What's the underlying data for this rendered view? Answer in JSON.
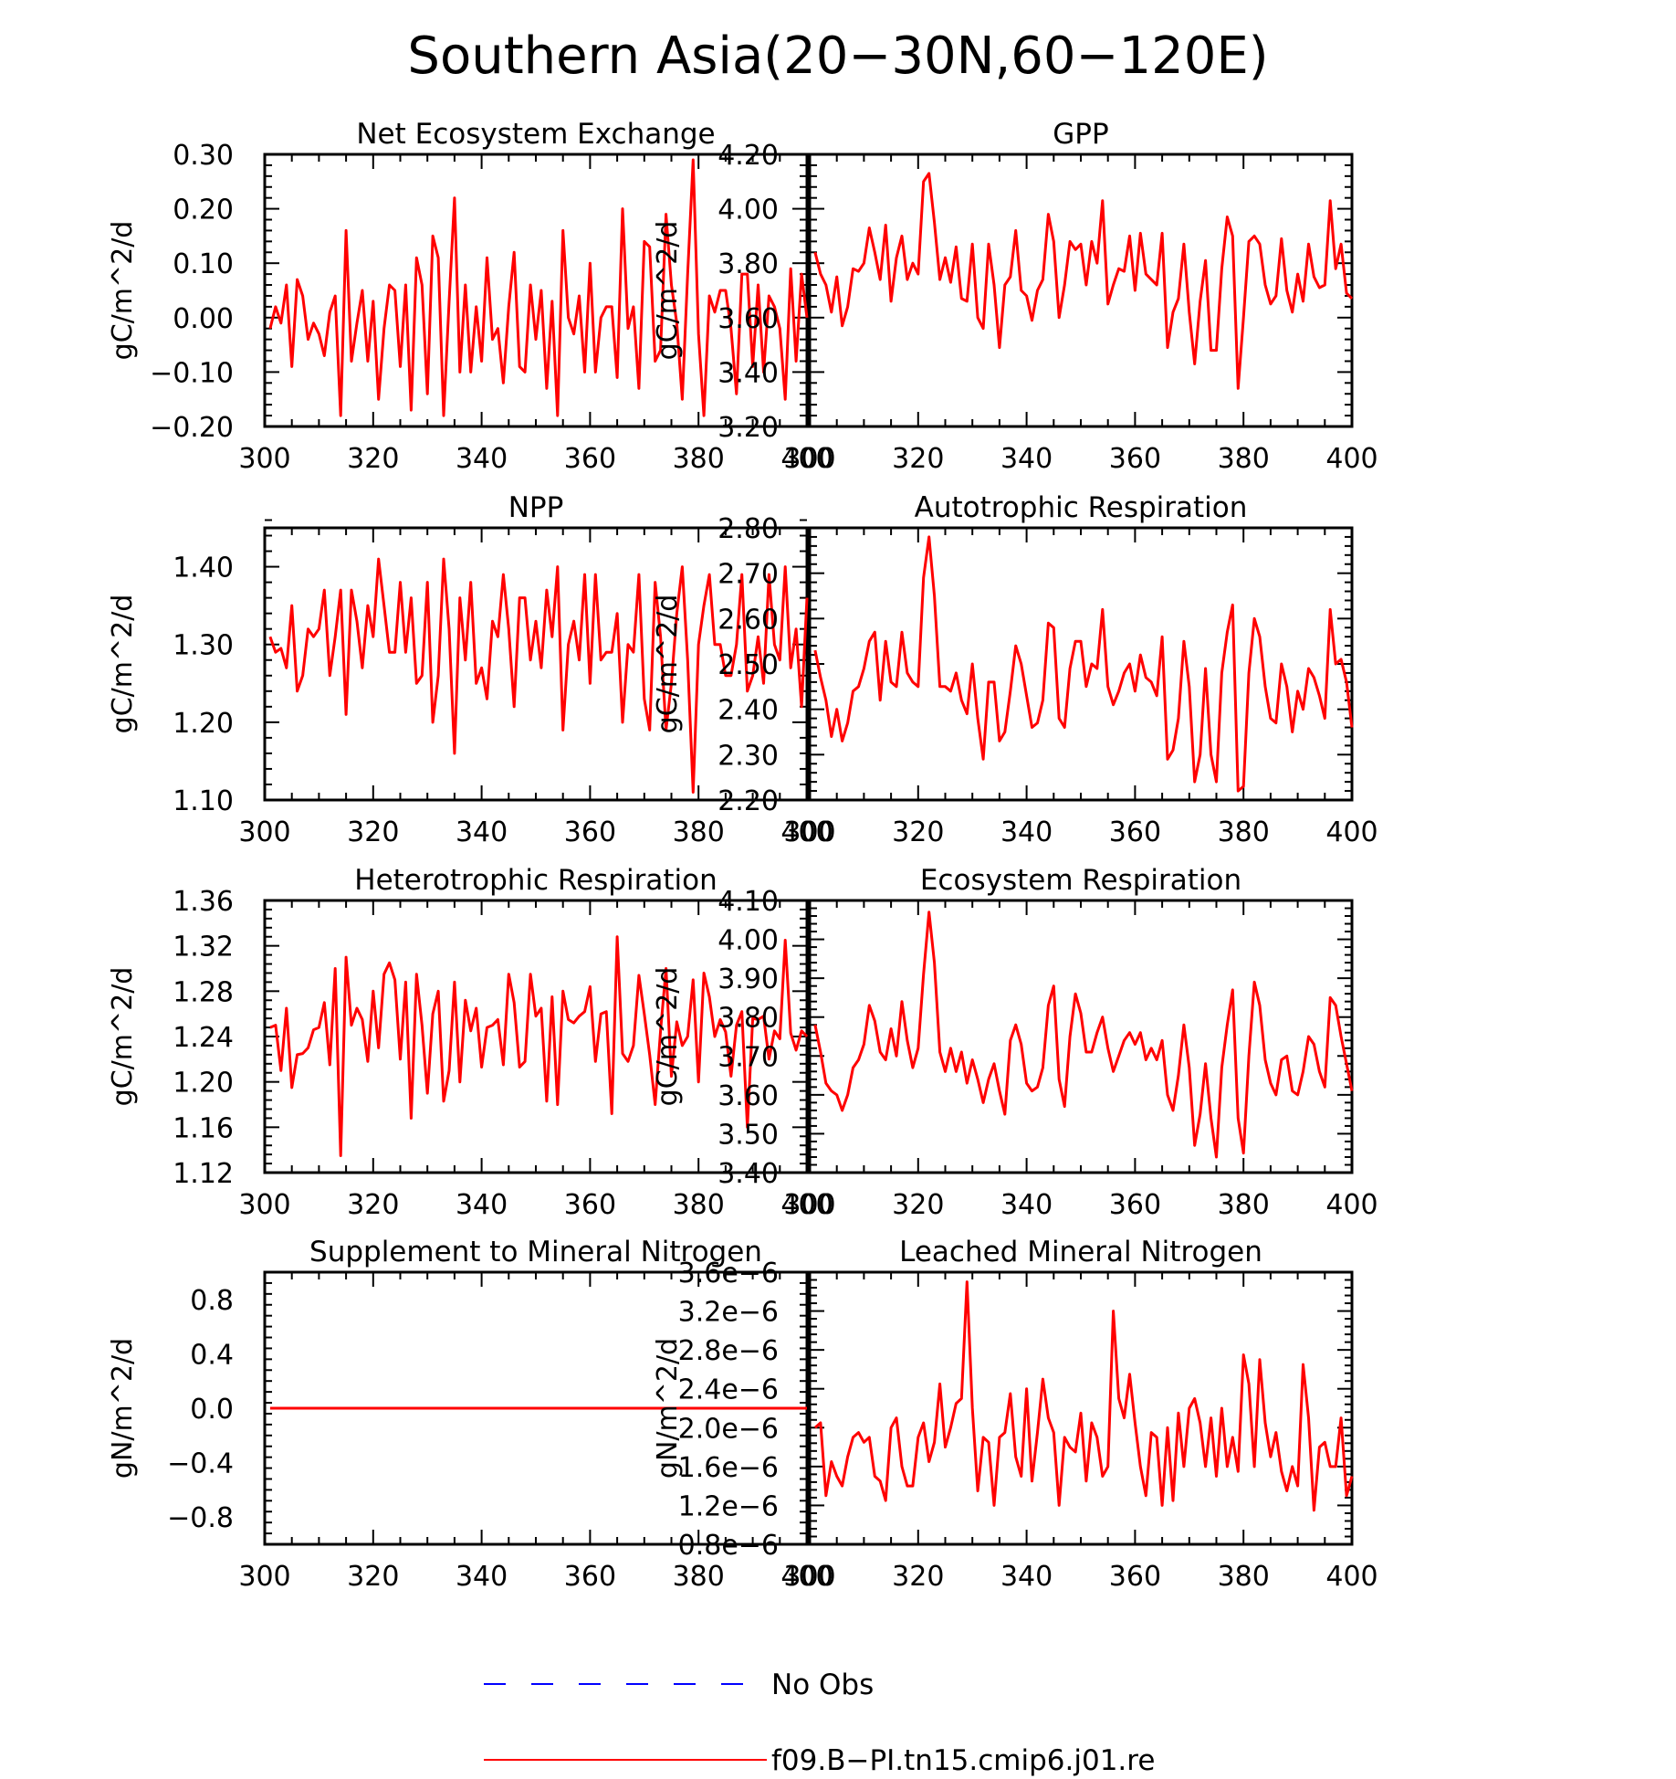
{
  "figure": {
    "title": "Southern Asia(20-30N,60-120E)",
    "legend": [
      {
        "label": "No Obs",
        "color": "#0000ff",
        "dash": true
      },
      {
        "label": "f09.B-PI.tn15.cmip6.j01.re",
        "color": "#ff0000",
        "dash": false
      }
    ]
  },
  "chart_data": [
    {
      "type": "line",
      "title": "Net Ecosystem Exchange",
      "ylabel": "gC/m^2/d",
      "xlim": [
        300,
        400
      ],
      "xticks": [
        300,
        320,
        340,
        360,
        380,
        400
      ],
      "ylim": [
        -0.2,
        0.3
      ],
      "yticks": [
        -0.2,
        -0.1,
        0.0,
        0.1,
        0.2,
        0.3
      ],
      "ytick_labels": [
        "-0.20",
        "-0.10",
        "0.00",
        "0.10",
        "0.20",
        "0.30"
      ],
      "series": [
        {
          "name": "f09.B-PI.tn15.cmip6.j01.re",
          "color": "#ff0000",
          "x_start": 301,
          "x_step": 1,
          "values": [
            -0.02,
            0.02,
            -0.01,
            0.06,
            -0.09,
            0.07,
            0.04,
            -0.04,
            -0.01,
            -0.03,
            -0.07,
            0.01,
            0.04,
            -0.18,
            0.16,
            -0.08,
            -0.01,
            0.05,
            -0.08,
            0.03,
            -0.15,
            -0.02,
            0.06,
            0.05,
            -0.09,
            0.06,
            -0.17,
            0.11,
            0.06,
            -0.14,
            0.15,
            0.11,
            -0.18,
            0.03,
            0.22,
            -0.1,
            0.06,
            -0.1,
            0.02,
            -0.08,
            0.11,
            -0.04,
            -0.02,
            -0.12,
            0.02,
            0.12,
            -0.09,
            -0.1,
            0.06,
            -0.04,
            0.05,
            -0.13,
            0.03,
            -0.18,
            0.16,
            0.0,
            -0.03,
            0.04,
            -0.1,
            0.1,
            -0.1,
            0.0,
            0.02,
            0.02,
            -0.11,
            0.2,
            -0.02,
            0.02,
            -0.13,
            0.14,
            0.13,
            -0.08,
            -0.06,
            0.19,
            0.06,
            -0.01,
            -0.15,
            0.08,
            0.29,
            -0.03,
            -0.18,
            0.04,
            0.01,
            0.05,
            0.05,
            -0.02,
            -0.14,
            0.08,
            0.08,
            -0.09,
            0.06,
            -0.1,
            0.04,
            0.02,
            -0.02,
            -0.15,
            0.09,
            -0.08,
            0.08,
            0.0
          ]
        }
      ]
    },
    {
      "type": "line",
      "title": "GPP",
      "ylabel": "gC/m^2/d",
      "xlim": [
        300,
        400
      ],
      "xticks": [
        300,
        320,
        340,
        360,
        380,
        400
      ],
      "ylim": [
        3.2,
        4.2
      ],
      "yticks": [
        3.2,
        3.4,
        3.6,
        3.8,
        4.0,
        4.2
      ],
      "ytick_labels": [
        "3.20",
        "3.40",
        "3.60",
        "3.80",
        "4.00",
        "4.20"
      ],
      "series": [
        {
          "name": "f09.B-PI.tn15.cmip6.j01.re",
          "color": "#ff0000",
          "x_start": 301,
          "x_step": 1,
          "values": [
            3.84,
            3.76,
            3.72,
            3.62,
            3.75,
            3.57,
            3.64,
            3.78,
            3.77,
            3.8,
            3.93,
            3.84,
            3.74,
            3.94,
            3.66,
            3.82,
            3.9,
            3.74,
            3.8,
            3.76,
            4.1,
            4.13,
            3.95,
            3.74,
            3.82,
            3.73,
            3.86,
            3.67,
            3.66,
            3.87,
            3.6,
            3.56,
            3.87,
            3.72,
            3.49,
            3.72,
            3.75,
            3.92,
            3.7,
            3.68,
            3.59,
            3.7,
            3.74,
            3.98,
            3.88,
            3.6,
            3.72,
            3.88,
            3.85,
            3.87,
            3.72,
            3.88,
            3.8,
            4.03,
            3.65,
            3.72,
            3.78,
            3.77,
            3.9,
            3.7,
            3.91,
            3.76,
            3.74,
            3.72,
            3.91,
            3.49,
            3.62,
            3.67,
            3.87,
            3.62,
            3.43,
            3.66,
            3.81,
            3.48,
            3.48,
            3.78,
            3.97,
            3.9,
            3.34,
            3.6,
            3.88,
            3.9,
            3.87,
            3.72,
            3.65,
            3.68,
            3.89,
            3.7,
            3.62,
            3.76,
            3.66,
            3.87,
            3.75,
            3.71,
            3.72,
            4.03,
            3.78,
            3.87,
            3.69,
            3.67
          ]
        }
      ]
    },
    {
      "type": "line",
      "title": "NPP",
      "ylabel": "gC/m^2/d",
      "xlim": [
        300,
        400
      ],
      "xticks": [
        300,
        320,
        340,
        360,
        380,
        400
      ],
      "ylim": [
        1.1,
        1.45
      ],
      "yticks": [
        1.1,
        1.2,
        1.3,
        1.4
      ],
      "ytick_labels": [
        "1.10",
        "1.20",
        "1.30",
        "1.40"
      ],
      "series": [
        {
          "name": "f09.B-PI.tn15.cmip6.j01.re",
          "color": "#ff0000",
          "x_start": 301,
          "x_step": 1,
          "values": [
            1.31,
            1.29,
            1.295,
            1.27,
            1.35,
            1.24,
            1.26,
            1.32,
            1.31,
            1.32,
            1.37,
            1.26,
            1.31,
            1.37,
            1.21,
            1.37,
            1.33,
            1.27,
            1.35,
            1.31,
            1.41,
            1.35,
            1.29,
            1.29,
            1.38,
            1.29,
            1.36,
            1.25,
            1.26,
            1.38,
            1.2,
            1.26,
            1.41,
            1.32,
            1.16,
            1.36,
            1.28,
            1.38,
            1.25,
            1.27,
            1.23,
            1.33,
            1.31,
            1.39,
            1.32,
            1.22,
            1.36,
            1.36,
            1.28,
            1.33,
            1.27,
            1.37,
            1.31,
            1.4,
            1.19,
            1.3,
            1.33,
            1.28,
            1.39,
            1.25,
            1.39,
            1.28,
            1.29,
            1.29,
            1.34,
            1.2,
            1.3,
            1.29,
            1.39,
            1.23,
            1.19,
            1.38,
            1.31,
            1.19,
            1.25,
            1.34,
            1.4,
            1.28,
            1.11,
            1.3,
            1.35,
            1.39,
            1.3,
            1.3,
            1.26,
            1.26,
            1.3,
            1.39,
            1.24,
            1.26,
            1.31,
            1.25,
            1.39,
            1.3,
            1.28,
            1.4,
            1.27,
            1.32,
            1.22,
            1.36
          ]
        }
      ]
    },
    {
      "type": "line",
      "title": "Autotrophic Respiration",
      "ylabel": "gC/m^2/d",
      "xlim": [
        300,
        400
      ],
      "xticks": [
        300,
        320,
        340,
        360,
        380,
        400
      ],
      "ylim": [
        2.2,
        2.8
      ],
      "yticks": [
        2.2,
        2.3,
        2.4,
        2.5,
        2.6,
        2.7,
        2.8
      ],
      "ytick_labels": [
        "2.20",
        "2.30",
        "2.40",
        "2.50",
        "2.60",
        "2.70",
        "2.80"
      ],
      "series": [
        {
          "name": "f09.B-PI.tn15.cmip6.j01.re",
          "color": "#ff0000",
          "x_start": 301,
          "x_step": 1,
          "values": [
            2.53,
            2.47,
            2.42,
            2.34,
            2.4,
            2.33,
            2.37,
            2.44,
            2.45,
            2.49,
            2.55,
            2.57,
            2.42,
            2.55,
            2.46,
            2.45,
            2.57,
            2.48,
            2.46,
            2.45,
            2.69,
            2.78,
            2.65,
            2.45,
            2.45,
            2.44,
            2.48,
            2.42,
            2.39,
            2.5,
            2.38,
            2.29,
            2.46,
            2.46,
            2.33,
            2.35,
            2.44,
            2.54,
            2.5,
            2.43,
            2.36,
            2.37,
            2.42,
            2.59,
            2.58,
            2.38,
            2.36,
            2.49,
            2.55,
            2.55,
            2.45,
            2.5,
            2.49,
            2.62,
            2.45,
            2.41,
            2.44,
            2.48,
            2.5,
            2.44,
            2.52,
            2.47,
            2.46,
            2.43,
            2.56,
            2.29,
            2.31,
            2.38,
            2.55,
            2.45,
            2.24,
            2.3,
            2.49,
            2.3,
            2.24,
            2.48,
            2.57,
            2.63,
            2.22,
            2.23,
            2.48,
            2.6,
            2.56,
            2.45,
            2.38,
            2.37,
            2.5,
            2.45,
            2.35,
            2.44,
            2.4,
            2.49,
            2.47,
            2.43,
            2.38,
            2.62,
            2.5,
            2.51,
            2.46,
            2.36
          ]
        }
      ]
    },
    {
      "type": "line",
      "title": "Heterotrophic Respiration",
      "ylabel": "gC/m^2/d",
      "xlim": [
        300,
        400
      ],
      "xticks": [
        300,
        320,
        340,
        360,
        380,
        400
      ],
      "ylim": [
        1.12,
        1.36
      ],
      "yticks": [
        1.12,
        1.16,
        1.2,
        1.24,
        1.28,
        1.32,
        1.36
      ],
      "ytick_labels": [
        "1.12",
        "1.16",
        "1.20",
        "1.24",
        "1.28",
        "1.32",
        "1.36"
      ],
      "series": [
        {
          "name": "f09.B-PI.tn15.cmip6.j01.re",
          "color": "#ff0000",
          "x_start": 301,
          "x_step": 1,
          "values": [
            1.248,
            1.25,
            1.21,
            1.265,
            1.195,
            1.224,
            1.225,
            1.23,
            1.246,
            1.248,
            1.27,
            1.215,
            1.3,
            1.135,
            1.31,
            1.25,
            1.265,
            1.255,
            1.218,
            1.28,
            1.23,
            1.295,
            1.305,
            1.29,
            1.22,
            1.288,
            1.168,
            1.295,
            1.25,
            1.19,
            1.26,
            1.28,
            1.183,
            1.21,
            1.288,
            1.2,
            1.272,
            1.245,
            1.265,
            1.213,
            1.248,
            1.25,
            1.255,
            1.215,
            1.295,
            1.27,
            1.213,
            1.218,
            1.295,
            1.258,
            1.265,
            1.183,
            1.275,
            1.18,
            1.28,
            1.255,
            1.252,
            1.258,
            1.262,
            1.284,
            1.218,
            1.26,
            1.262,
            1.172,
            1.328,
            1.225,
            1.218,
            1.232,
            1.294,
            1.26,
            1.224,
            1.18,
            1.245,
            1.3,
            1.205,
            1.253,
            1.232,
            1.24,
            1.29,
            1.2,
            1.296,
            1.275,
            1.24,
            1.255,
            1.244,
            1.205,
            1.25,
            1.262,
            1.16,
            1.256,
            1.255,
            1.258,
            1.22,
            1.245,
            1.238,
            1.325,
            1.243,
            1.228,
            1.245,
            1.24
          ]
        }
      ]
    },
    {
      "type": "line",
      "title": "Ecosystem Respiration",
      "ylabel": "gC/m^2/d",
      "xlim": [
        300,
        400
      ],
      "xticks": [
        300,
        320,
        340,
        360,
        380,
        400
      ],
      "ylim": [
        3.4,
        4.1
      ],
      "yticks": [
        3.4,
        3.5,
        3.6,
        3.7,
        3.8,
        3.9,
        4.0,
        4.1
      ],
      "ytick_labels": [
        "3.40",
        "3.50",
        "3.60",
        "3.70",
        "3.80",
        "3.90",
        "4.00",
        "4.10"
      ],
      "series": [
        {
          "name": "f09.B-PI.tn15.cmip6.j01.re",
          "color": "#ff0000",
          "x_start": 301,
          "x_step": 1,
          "values": [
            3.78,
            3.71,
            3.63,
            3.61,
            3.6,
            3.56,
            3.6,
            3.67,
            3.69,
            3.73,
            3.83,
            3.79,
            3.71,
            3.69,
            3.77,
            3.7,
            3.84,
            3.74,
            3.67,
            3.72,
            3.91,
            4.07,
            3.94,
            3.71,
            3.66,
            3.72,
            3.66,
            3.71,
            3.63,
            3.69,
            3.64,
            3.58,
            3.64,
            3.68,
            3.61,
            3.55,
            3.74,
            3.78,
            3.73,
            3.63,
            3.61,
            3.62,
            3.67,
            3.83,
            3.88,
            3.64,
            3.57,
            3.75,
            3.86,
            3.81,
            3.71,
            3.71,
            3.76,
            3.8,
            3.72,
            3.66,
            3.7,
            3.74,
            3.76,
            3.73,
            3.76,
            3.69,
            3.72,
            3.69,
            3.74,
            3.6,
            3.56,
            3.65,
            3.78,
            3.67,
            3.47,
            3.55,
            3.68,
            3.54,
            3.44,
            3.67,
            3.78,
            3.87,
            3.54,
            3.45,
            3.7,
            3.89,
            3.83,
            3.69,
            3.63,
            3.6,
            3.69,
            3.7,
            3.61,
            3.6,
            3.66,
            3.75,
            3.73,
            3.66,
            3.62,
            3.85,
            3.83,
            3.75,
            3.68,
            3.61
          ]
        }
      ]
    },
    {
      "type": "line",
      "title": "Supplement to Mineral Nitrogen",
      "ylabel": "gN/m^2/d",
      "xlim": [
        300,
        400
      ],
      "xticks": [
        300,
        320,
        340,
        360,
        380,
        400
      ],
      "ylim": [
        -1.0,
        1.0
      ],
      "yticks": [
        -0.8,
        -0.4,
        0.0,
        0.4,
        0.8
      ],
      "ytick_labels": [
        "-0.8",
        "-0.4",
        "0.0",
        "0.4",
        "0.8"
      ],
      "series": [
        {
          "name": "f09.B-PI.tn15.cmip6.j01.re",
          "color": "#ff0000",
          "x_start": 301,
          "x_step": 99,
          "values": [
            0.0,
            0.0
          ]
        }
      ]
    },
    {
      "type": "line",
      "title": "Leached Mineral Nitrogen",
      "ylabel": "gN/m^2/d",
      "xlim": [
        300,
        400
      ],
      "xticks": [
        300,
        320,
        340,
        360,
        380,
        400
      ],
      "ylim": [
        8e-07,
        3.6e-06
      ],
      "yticks": [
        8e-07,
        1.2e-06,
        1.6e-06,
        2e-06,
        2.4e-06,
        2.8e-06,
        3.2e-06,
        3.6e-06
      ],
      "ytick_labels": [
        "0.8e-6",
        "1.2e-6",
        "1.6e-6",
        "2.0e-6",
        "2.4e-6",
        "2.8e-6",
        "3.2e-6",
        "3.6e-6"
      ],
      "series": [
        {
          "name": "f09.B-PI.tn15.cmip6.j01.re",
          "color": "#ff0000",
          "x_start": 301,
          "x_step": 1,
          "values": [
            2e-06,
            2.05e-06,
            1.3e-06,
            1.65e-06,
            1.5e-06,
            1.4e-06,
            1.7e-06,
            1.9e-06,
            1.95e-06,
            1.85e-06,
            1.9e-06,
            1.5e-06,
            1.45e-06,
            1.25e-06,
            2e-06,
            2.1e-06,
            1.6e-06,
            1.4e-06,
            1.4e-06,
            1.9e-06,
            2.05e-06,
            1.65e-06,
            1.85e-06,
            2.45e-06,
            1.8e-06,
            2e-06,
            2.25e-06,
            2.3e-06,
            3.5e-06,
            2.2e-06,
            1.35e-06,
            1.9e-06,
            1.85e-06,
            1.2e-06,
            1.9e-06,
            1.95e-06,
            2.35e-06,
            1.7e-06,
            1.5e-06,
            2.4e-06,
            1.45e-06,
            1.95e-06,
            2.5e-06,
            2.1e-06,
            1.95e-06,
            1.2e-06,
            1.9e-06,
            1.8e-06,
            1.75e-06,
            2.15e-06,
            1.45e-06,
            2.05e-06,
            1.9e-06,
            1.5e-06,
            1.6e-06,
            3.2e-06,
            2.3e-06,
            2.1e-06,
            2.55e-06,
            2.05e-06,
            1.6e-06,
            1.3e-06,
            1.95e-06,
            1.9e-06,
            1.2e-06,
            2e-06,
            1.25e-06,
            2.15e-06,
            1.6e-06,
            2.2e-06,
            2.3e-06,
            2.05e-06,
            1.6e-06,
            2.1e-06,
            1.5e-06,
            2.2e-06,
            1.6e-06,
            1.9e-06,
            1.55e-06,
            2.75e-06,
            2.45e-06,
            1.6e-06,
            2.7e-06,
            2.05e-06,
            1.7e-06,
            1.95e-06,
            1.55e-06,
            1.35e-06,
            1.6e-06,
            1.4e-06,
            2.65e-06,
            2.1e-06,
            1.15e-06,
            1.8e-06,
            1.85e-06,
            1.6e-06,
            1.6e-06,
            2.1e-06,
            1.3e-06,
            1.5e-06
          ]
        }
      ]
    }
  ]
}
